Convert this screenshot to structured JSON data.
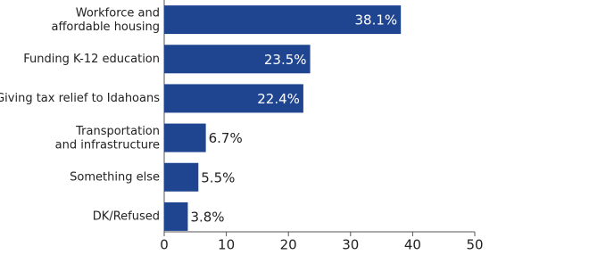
{
  "chart_data": {
    "type": "bar",
    "orientation": "horizontal",
    "categories": [
      "Workforce and\naffordable housing",
      "Funding K-12 education",
      "Giving tax relief to Idahoans",
      "Transportation\nand infrastructure",
      "Something else",
      "DK/Refused"
    ],
    "values": [
      38.1,
      23.5,
      22.4,
      6.7,
      5.5,
      3.8
    ],
    "value_labels": [
      "38.1%",
      "23.5%",
      "22.4%",
      "6.7%",
      "5.5%",
      "3.8%"
    ],
    "color": "#1f4591",
    "xlim": [
      0,
      50
    ],
    "xticks": [
      0,
      10,
      20,
      30,
      40,
      50
    ],
    "grid": false
  }
}
